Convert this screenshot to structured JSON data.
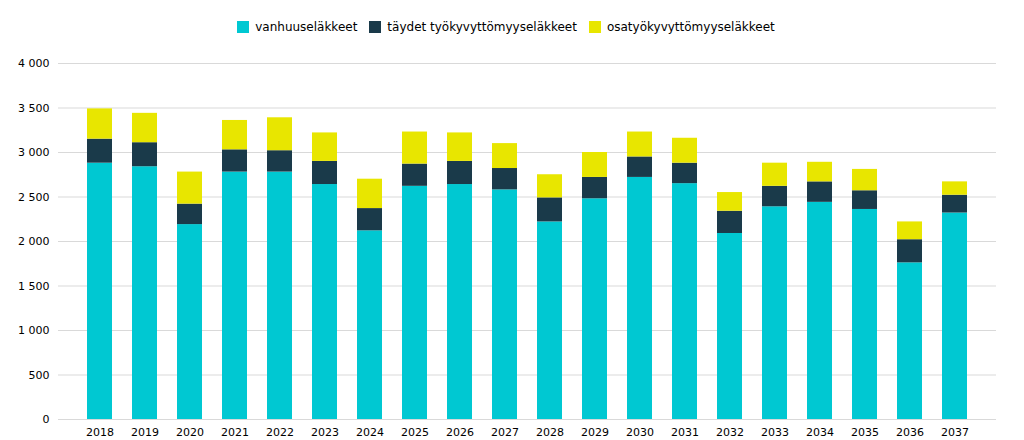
{
  "chart_data": {
    "type": "bar",
    "stacked": true,
    "categories": [
      "2018",
      "2019",
      "2020",
      "2021",
      "2022",
      "2023",
      "2024",
      "2025",
      "2026",
      "2027",
      "2028",
      "2029",
      "2030",
      "2031",
      "2032",
      "2033",
      "2034",
      "2035",
      "2036",
      "2037"
    ],
    "series": [
      {
        "name": "vanhuuseläkkeet",
        "color": "#00c8d2",
        "values": [
          2880,
          2840,
          2190,
          2780,
          2780,
          2640,
          2120,
          2620,
          2640,
          2580,
          2220,
          2480,
          2720,
          2650,
          2090,
          2390,
          2440,
          2360,
          1760,
          2320
        ]
      },
      {
        "name": "täydet työkyvyttömyyseläkkeet",
        "color": "#1a3a4a",
        "values": [
          270,
          270,
          230,
          250,
          240,
          260,
          250,
          250,
          260,
          240,
          270,
          240,
          230,
          230,
          250,
          230,
          230,
          210,
          260,
          200
        ]
      },
      {
        "name": "osatyökyvyttömyyseläkkeet",
        "color": "#e8e600",
        "values": [
          340,
          330,
          360,
          330,
          370,
          320,
          330,
          360,
          320,
          280,
          260,
          280,
          280,
          280,
          210,
          260,
          220,
          240,
          200,
          150
        ]
      }
    ],
    "ylim": [
      0,
      4000
    ],
    "yticks": [
      0,
      500,
      {
        "value": 1000,
        "label": "1 000"
      },
      {
        "value": 1500,
        "label": "1 500"
      },
      {
        "value": 2000,
        "label": "2 000"
      },
      {
        "value": 2500,
        "label": "2 500"
      },
      {
        "value": 3000,
        "label": "3 000"
      },
      {
        "value": 3500,
        "label": "3 500"
      },
      {
        "value": 4000,
        "label": "4 000"
      }
    ],
    "grid": true,
    "legend": "upper center"
  }
}
